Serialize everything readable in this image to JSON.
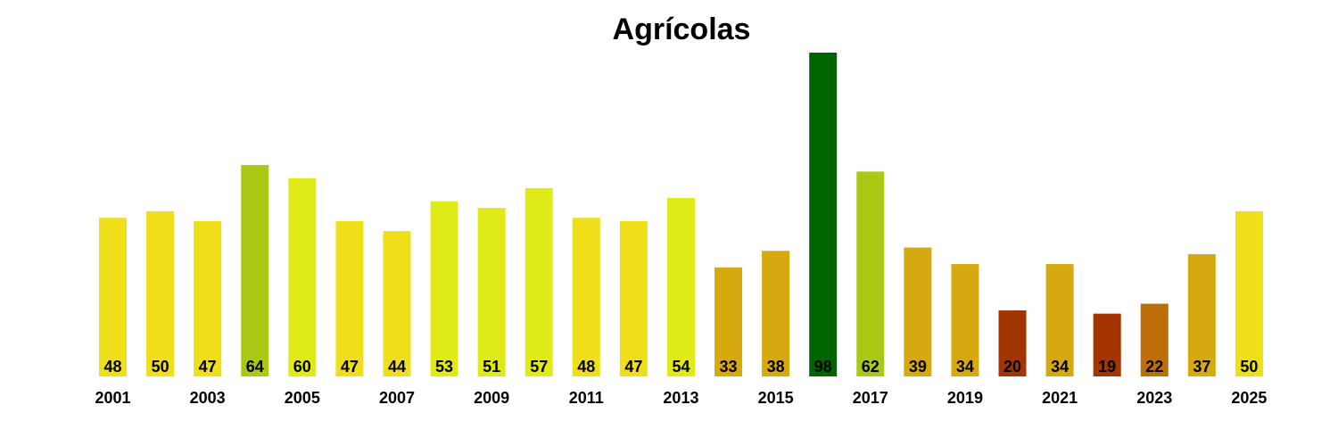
{
  "chart_data": {
    "type": "bar",
    "title": "Agrícolas",
    "xlabel": "",
    "ylabel": "",
    "grid": false,
    "legend": "none",
    "ylim": [
      0,
      98
    ],
    "categories": [
      "2001",
      "2002",
      "2003",
      "2004",
      "2005",
      "2006",
      "2007",
      "2008",
      "2009",
      "2010",
      "2011",
      "2012",
      "2013",
      "2014",
      "2015",
      "2016",
      "2017",
      "2018",
      "2019",
      "2020",
      "2021",
      "2022",
      "2023",
      "2024",
      "2025"
    ],
    "values": [
      48,
      50,
      47,
      64,
      60,
      47,
      44,
      53,
      51,
      57,
      48,
      47,
      54,
      33,
      38,
      98,
      62,
      39,
      34,
      20,
      34,
      19,
      22,
      37,
      50
    ],
    "colors": [
      "#EFDF1B",
      "#EFDF1B",
      "#EFDF1B",
      "#A9C914",
      "#E0EA16",
      "#EFDF1B",
      "#EFDF1B",
      "#E0EA16",
      "#E0EA16",
      "#E0EA16",
      "#EFDF1B",
      "#EFDF1B",
      "#E0EA16",
      "#D6A910",
      "#D6A910",
      "#006400",
      "#A9C914",
      "#D6A910",
      "#D6A910",
      "#A33503",
      "#D6A910",
      "#A33503",
      "#BD6E09",
      "#D6A910",
      "#EFDF1B"
    ],
    "tick_labels": [
      "2001",
      "2003",
      "2005",
      "2007",
      "2009",
      "2011",
      "2013",
      "2015",
      "2017",
      "2019",
      "2021",
      "2023",
      "2025"
    ]
  }
}
